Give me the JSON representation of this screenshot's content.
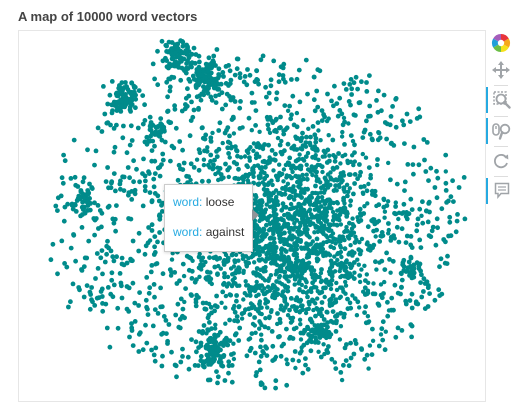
{
  "title": "A map of 10000 word vectors",
  "point_color": "#008b8b",
  "toolbar": {
    "tools": [
      "bokeh-logo-icon",
      "pan-icon",
      "box-zoom-icon",
      "wheel-zoom-icon",
      "reset-icon",
      "hover-icon"
    ]
  },
  "tooltip": {
    "rows": [
      {
        "key": "word:",
        "value": "loose"
      },
      {
        "key": "word:",
        "value": "against"
      }
    ]
  },
  "chart_data": {
    "type": "scatter",
    "title": "A map of 10000 word vectors",
    "n_points": 10000,
    "grid": false,
    "axes_visible": false,
    "series": [
      {
        "x": [],
        "y": []
      }
    ]
  }
}
